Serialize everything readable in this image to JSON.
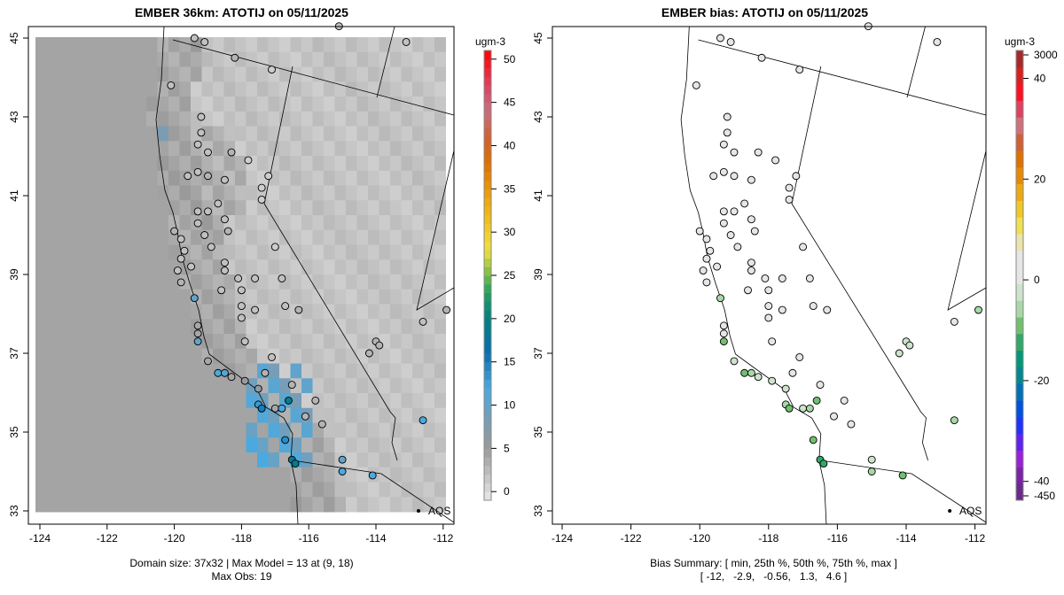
{
  "left_panel": {
    "title": "EMBER 36km: ATOTIJ on 05/11/2025",
    "footer1": "Domain size: 37x32 | Max Model = 13 at (9, 18)",
    "footer2": "Max Obs: 19",
    "units": "ugm-3",
    "aqs_label": "AQS"
  },
  "right_panel": {
    "title": "EMBER bias: ATOTIJ on 05/11/2025",
    "footer1": "Bias Summary: [ min, 25th %, 50th %, 75th %, max ]",
    "footer2": "[ -12,   -2.9,   -0.56,   1.3,   4.6 ]",
    "units": "ugm-3",
    "aqs_label": "AQS"
  },
  "chart_data": [
    {
      "type": "heatmap",
      "title": "EMBER 36km: ATOTIJ on 05/11/2025",
      "xlabel": "",
      "ylabel": "",
      "xticks": [
        "-124",
        "-122",
        "-120",
        "-118",
        "-116",
        "-114",
        "-112"
      ],
      "yticks": [
        "33",
        "35",
        "37",
        "39",
        "41",
        "43",
        "45"
      ],
      "xlim": [
        -124.1,
        -111.8
      ],
      "ylim": [
        32.7,
        45.3
      ],
      "grid": [
        37,
        32
      ],
      "colorbar": {
        "ticks": [
          "0",
          "5",
          "10",
          "15",
          "20",
          "25",
          "30",
          "35",
          "40",
          "45",
          "50"
        ],
        "range": [
          -1,
          51
        ],
        "stops": [
          [
            -1,
            "#e8e8e8"
          ],
          [
            5,
            "#9a9a9a"
          ],
          [
            8,
            "#7c9cb2"
          ],
          [
            12,
            "#4aaae0"
          ],
          [
            16,
            "#0a6eb0"
          ],
          [
            20,
            "#008080"
          ],
          [
            23,
            "#20a060"
          ],
          [
            26,
            "#a0c840"
          ],
          [
            28,
            "#f0e040"
          ],
          [
            33,
            "#f0b010"
          ],
          [
            38,
            "#e07000"
          ],
          [
            41,
            "#d06030"
          ],
          [
            44,
            "#c87080"
          ],
          [
            47,
            "#e04060"
          ],
          [
            51,
            "#ff0000"
          ]
        ]
      }
    },
    {
      "type": "scatter",
      "title": "EMBER bias: ATOTIJ on 05/11/2025",
      "xticks": [
        "-124",
        "-122",
        "-120",
        "-118",
        "-116",
        "-114",
        "-112"
      ],
      "yticks": [
        "33",
        "35",
        "37",
        "39",
        "41",
        "43",
        "45"
      ],
      "colorbar": {
        "ticks": [
          "3000",
          "40",
          "20",
          "0",
          "-20",
          "-40",
          "-450"
        ],
        "stops": [
          "#6a2a8a",
          "#7a22a8",
          "#9a20d8",
          "#6020f0",
          "#2030ff",
          "#0050e0",
          "#0070b8",
          "#008890",
          "#009878",
          "#30a868",
          "#70c070",
          "#a8d8a8",
          "#cce4cc",
          "#e6e6e6",
          "#e6e6e6",
          "#ece4a8",
          "#f0e050",
          "#f0c820",
          "#f0a810",
          "#e88a00",
          "#e07000",
          "#d06030",
          "#d07078",
          "#e04060",
          "#ff1020",
          "#d82020",
          "#a82828"
        ]
      }
    },
    {
      "type": "stations",
      "fields": [
        "lon",
        "lat",
        "obs",
        "bias"
      ],
      "points": [
        [
          -119.4,
          45.0,
          2,
          0.3
        ],
        [
          -119.1,
          44.9,
          2,
          1.5
        ],
        [
          -118.2,
          44.5,
          3,
          0
        ],
        [
          -117.1,
          44.2,
          1,
          -0.2
        ],
        [
          -120.1,
          43.8,
          2,
          -0.5
        ],
        [
          -119.2,
          43.0,
          2,
          0
        ],
        [
          -119.2,
          42.6,
          2,
          0
        ],
        [
          -119.3,
          42.3,
          2,
          0
        ],
        [
          -119.0,
          42.1,
          2,
          0
        ],
        [
          -118.3,
          42.1,
          3,
          0
        ],
        [
          -117.8,
          41.9,
          1,
          0.5
        ],
        [
          -119.3,
          41.6,
          2,
          0
        ],
        [
          -119.0,
          41.5,
          3,
          0.3
        ],
        [
          -119.6,
          41.5,
          2,
          0
        ],
        [
          -118.5,
          41.4,
          2,
          1.5
        ],
        [
          -117.2,
          41.5,
          1,
          0
        ],
        [
          -117.4,
          41.2,
          1,
          0
        ],
        [
          -117.4,
          40.9,
          1,
          0
        ],
        [
          -119.3,
          40.6,
          2,
          1.2
        ],
        [
          -119.0,
          40.6,
          2,
          2
        ],
        [
          -118.7,
          40.8,
          2,
          0
        ],
        [
          -118.5,
          40.4,
          2,
          3
        ],
        [
          -119.3,
          40.3,
          2,
          0.2
        ],
        [
          -119.1,
          40.0,
          2,
          0
        ],
        [
          -118.4,
          40.1,
          3,
          1.5
        ],
        [
          -120.0,
          40.1,
          3,
          0.8
        ],
        [
          -119.8,
          39.9,
          2,
          0.5
        ],
        [
          -119.7,
          39.6,
          2,
          0.3
        ],
        [
          -119.8,
          39.4,
          2,
          2
        ],
        [
          -119.5,
          39.2,
          2,
          0.5
        ],
        [
          -119.9,
          39.1,
          2,
          1
        ],
        [
          -118.9,
          39.7,
          2,
          0.8
        ],
        [
          -118.5,
          39.3,
          2,
          0
        ],
        [
          -117.0,
          39.7,
          1,
          0
        ],
        [
          -118.5,
          39.1,
          2,
          0
        ],
        [
          -118.1,
          38.9,
          2,
          0
        ],
        [
          -117.6,
          38.9,
          2,
          0
        ],
        [
          -118.0,
          38.6,
          2,
          0
        ],
        [
          -118.6,
          38.6,
          2,
          0
        ],
        [
          -116.8,
          38.9,
          2,
          0
        ],
        [
          -119.8,
          38.8,
          3,
          0.5
        ],
        [
          -119.4,
          38.4,
          10,
          -5
        ],
        [
          -118.0,
          38.2,
          2,
          0
        ],
        [
          -117.6,
          38.1,
          2,
          0
        ],
        [
          -118.0,
          37.9,
          2,
          0
        ],
        [
          -116.7,
          38.2,
          2,
          0
        ],
        [
          -116.3,
          38.1,
          3,
          0.3
        ],
        [
          -119.3,
          37.7,
          4,
          1.5
        ],
        [
          -119.3,
          37.5,
          4,
          0
        ],
        [
          -119.3,
          37.3,
          10,
          -8
        ],
        [
          -117.9,
          37.3,
          2,
          0
        ],
        [
          -119.0,
          36.8,
          4,
          -2
        ],
        [
          -118.7,
          36.5,
          12,
          -8
        ],
        [
          -118.5,
          36.5,
          11,
          -6
        ],
        [
          -118.3,
          36.4,
          4,
          -2
        ],
        [
          -117.9,
          36.3,
          5,
          -3
        ],
        [
          -117.5,
          36.1,
          6,
          -4
        ],
        [
          -117.1,
          36.9,
          2,
          0
        ],
        [
          -117.3,
          36.5,
          3,
          0
        ],
        [
          -116.5,
          36.2,
          3,
          0
        ],
        [
          -116.6,
          35.8,
          19,
          -10
        ],
        [
          -117.5,
          35.7,
          13,
          -6
        ],
        [
          -117.4,
          35.6,
          15,
          -8
        ],
        [
          -117.0,
          35.6,
          4,
          -2
        ],
        [
          -116.8,
          35.6,
          12,
          -7
        ],
        [
          -115.8,
          35.8,
          3,
          0
        ],
        [
          -116.1,
          35.4,
          3,
          0
        ],
        [
          -116.7,
          34.8,
          14,
          -8
        ],
        [
          -116.5,
          34.3,
          18,
          -11
        ],
        [
          -116.4,
          34.2,
          19,
          -12
        ],
        [
          -115.0,
          34.3,
          10,
          -3
        ],
        [
          -115.0,
          34.0,
          12,
          -7
        ],
        [
          -114.1,
          33.9,
          12,
          -8
        ],
        [
          -115.6,
          35.2,
          3,
          0
        ],
        [
          -114.2,
          37.0,
          3,
          -1
        ],
        [
          -114.0,
          37.3,
          3,
          -1
        ],
        [
          -113.9,
          37.2,
          3,
          -4
        ],
        [
          -112.6,
          37.8,
          2,
          0
        ],
        [
          -111.9,
          38.1,
          3,
          -5
        ],
        [
          -112.6,
          35.3,
          12,
          -7
        ],
        [
          -113.1,
          44.9,
          2,
          0
        ],
        [
          -115.1,
          45.3,
          2,
          0
        ]
      ]
    }
  ]
}
